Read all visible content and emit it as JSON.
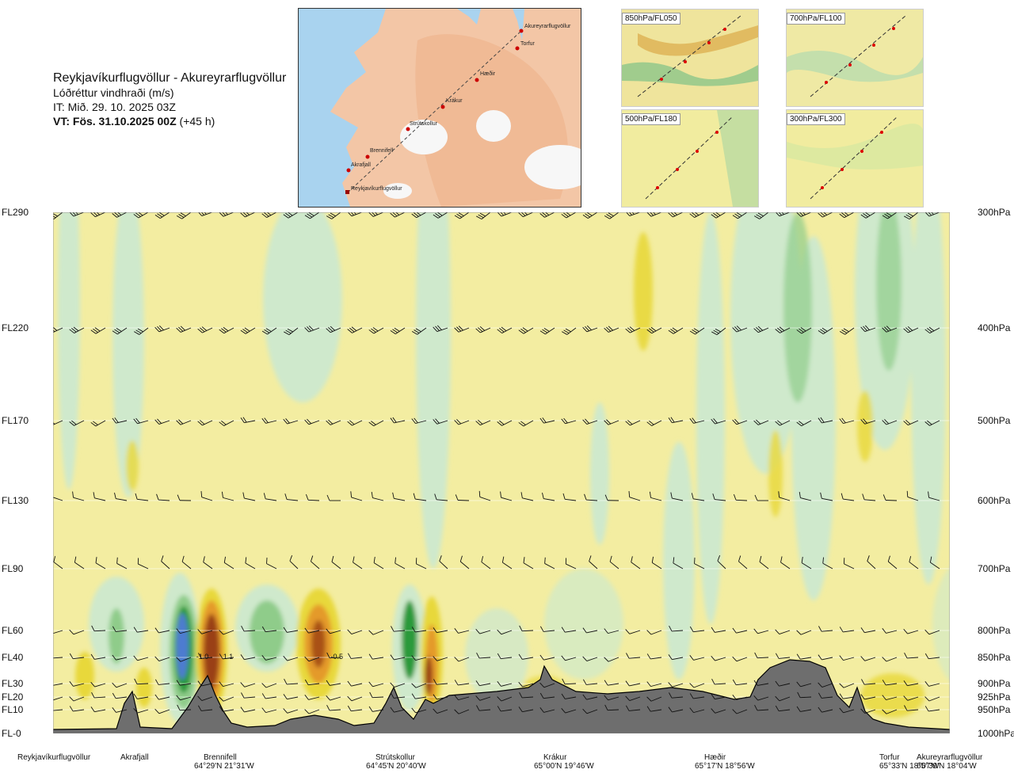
{
  "header": {
    "title": "Reykjavíkurflugvöllur - Akureyrarflugvöllur",
    "subtitle": "Lóðréttur vindhraði (m/s)",
    "it": "IT: Mið. 29. 10. 2025 03Z",
    "vt_bold": "VT: Fös. 31.10.2025 00Z",
    "vt_rest": " (+45 h)"
  },
  "map": {
    "places": [
      {
        "name": "Akureyrarflugvöllur"
      },
      {
        "name": "Torfur"
      },
      {
        "name": "Hæðir"
      },
      {
        "name": "Krákur"
      },
      {
        "name": "Strútskollur"
      },
      {
        "name": "Brennifell"
      },
      {
        "name": "Akrafjall"
      },
      {
        "name": "Reykjavíkurflugvöllur"
      }
    ]
  },
  "insets": [
    {
      "label": "850hPa/FL050"
    },
    {
      "label": "700hPa/FL100"
    },
    {
      "label": "500hPa/FL180"
    },
    {
      "label": "300hPa/FL300"
    }
  ],
  "colors": {
    "pale_yellow": "#f3eda1",
    "light_green": "#cfe9cc",
    "mid_green": "#8fcc8a",
    "dark_green": "#2c9a3a",
    "blue": "#4e7bd0",
    "yellow": "#e8d83a",
    "orange": "#e49a2b",
    "brown": "#9a3f12",
    "terrain": "#6e6e6e"
  },
  "chart_data": {
    "type": "heatmap",
    "title": "Lóðréttur vindhraði (m/s)",
    "flight_levels": [
      {
        "fl": "FL290",
        "hpa": "300hPa",
        "p": 300
      },
      {
        "fl": "FL220",
        "hpa": "400hPa",
        "p": 400
      },
      {
        "fl": "FL170",
        "hpa": "500hPa",
        "p": 500
      },
      {
        "fl": "FL130",
        "hpa": "600hPa",
        "p": 600
      },
      {
        "fl": "FL90",
        "hpa": "700hPa",
        "p": 700
      },
      {
        "fl": "FL60",
        "hpa": "800hPa",
        "p": 800
      },
      {
        "fl": "FL40",
        "hpa": "850hPa",
        "p": 850
      },
      {
        "fl": "FL30",
        "hpa": "900hPa",
        "p": 900
      },
      {
        "fl": "FL20",
        "hpa": "925hPa",
        "p": 925
      },
      {
        "fl": "FL10",
        "hpa": "950hPa",
        "p": 950
      },
      {
        "fl": "FL-0",
        "hpa": "1000hPa",
        "p": 1000
      }
    ],
    "waypoints": [
      {
        "name": "Reykjavíkurflugvöllur",
        "coord": "",
        "x": 0.0
      },
      {
        "name": "Akrafjall",
        "coord": "",
        "x": 0.09
      },
      {
        "name": "Brennifell",
        "coord": "64°29'N 21°31'W",
        "x": 0.18
      },
      {
        "name": "Strútskollur",
        "coord": "64°45'N 20°40'W",
        "x": 0.38
      },
      {
        "name": "Krákur",
        "coord": "65°00'N 19°46'W",
        "x": 0.57
      },
      {
        "name": "Hæðir",
        "coord": "65°17'N 18°56'W",
        "x": 0.77
      },
      {
        "name": "Torfur",
        "coord": "65°33'N 18°07'W",
        "x": 0.96
      },
      {
        "name": "Akureyrarflugvöllur",
        "coord": "65°39'N 18°04'W",
        "x": 1.0
      }
    ],
    "contour_labels": [
      {
        "text": "-1.0",
        "x": 0.142,
        "p": 847
      },
      {
        "text": "1.1",
        "x": 0.172,
        "p": 847
      },
      {
        "text": "-0.5",
        "x": 0.292,
        "p": 847
      }
    ]
  }
}
